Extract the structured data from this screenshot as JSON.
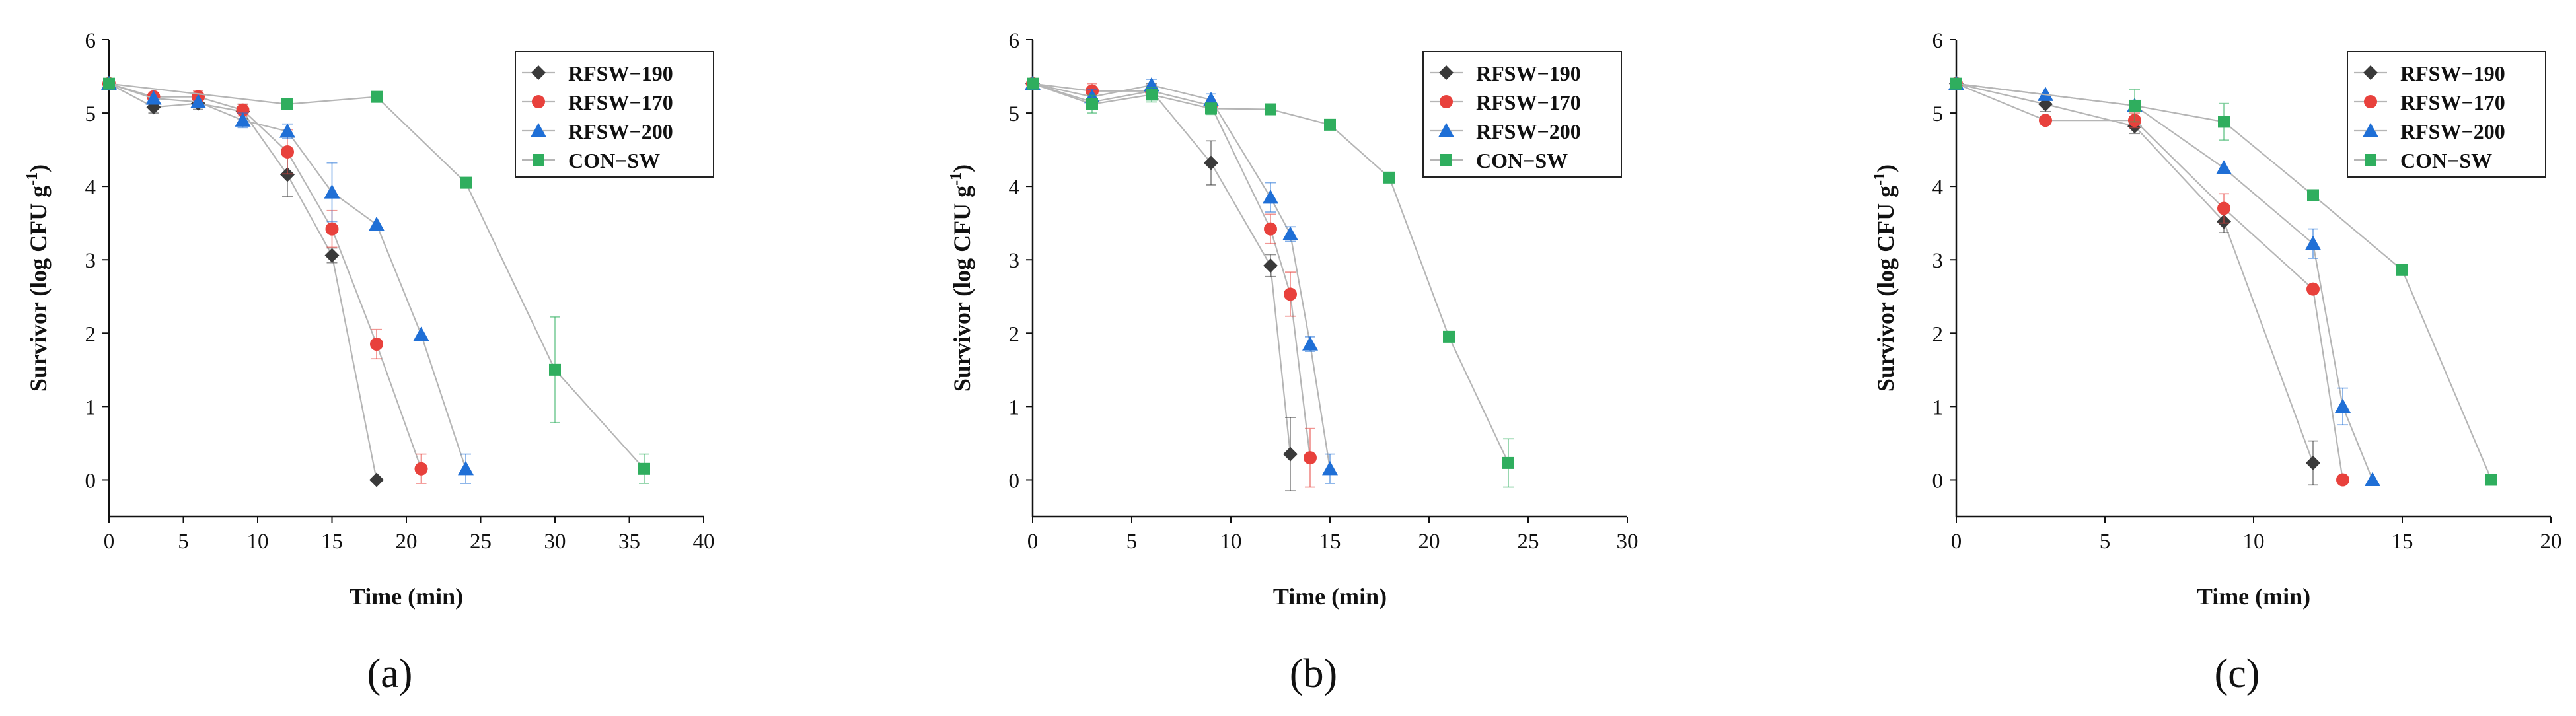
{
  "series_styles": [
    {
      "name": "RFSW-190",
      "color": "#3a3a3a",
      "marker": "diamond"
    },
    {
      "name": "RFSW-170",
      "color": "#e8413c",
      "marker": "circle"
    },
    {
      "name": "RFSW-200",
      "color": "#1f6fd6",
      "marker": "triangle"
    },
    {
      "name": "CON-SW",
      "color": "#2fae5e",
      "marker": "square"
    }
  ],
  "line_color": "#b5b5b5",
  "chart_data": [
    {
      "type": "line",
      "panel_label": "(a)",
      "xlabel": "Time (min)",
      "ylabel": "Survivor (log CFU g",
      "ylabel_sup": "-1",
      "ylabel_end": ")",
      "xlim": [
        0,
        40
      ],
      "ylim": [
        -0.5,
        6
      ],
      "xticks": [
        0,
        5,
        10,
        15,
        20,
        25,
        30,
        35,
        40
      ],
      "yticks": [
        0,
        1,
        2,
        3,
        4,
        5,
        6
      ],
      "legend": [
        "RFSW−190",
        "RFSW−170",
        "RFSW−200",
        "CON−SW"
      ],
      "series": [
        {
          "name": "RFSW-190",
          "x": [
            0,
            3,
            6,
            9,
            12,
            15,
            18
          ],
          "y": [
            5.4,
            5.08,
            5.13,
            5.02,
            4.16,
            3.06,
            0.0
          ],
          "err": [
            0.05,
            0.08,
            0.08,
            0.1,
            0.3,
            0.1,
            0.05
          ]
        },
        {
          "name": "RFSW-170",
          "x": [
            0,
            3,
            6,
            9,
            12,
            15,
            18,
            21
          ],
          "y": [
            5.4,
            5.22,
            5.22,
            5.04,
            4.47,
            3.42,
            1.85,
            0.15
          ],
          "err": [
            0.05,
            0.05,
            0.08,
            0.08,
            0.3,
            0.25,
            0.2,
            0.2
          ]
        },
        {
          "name": "RFSW-200",
          "x": [
            0,
            3,
            6,
            9,
            12,
            15,
            18,
            21,
            24
          ],
          "y": [
            5.4,
            5.2,
            5.15,
            4.9,
            4.75,
            3.92,
            3.48,
            1.98,
            0.15
          ],
          "err": [
            0.05,
            0.05,
            0.05,
            0.1,
            0.1,
            0.4,
            0.05,
            0.05,
            0.2
          ]
        },
        {
          "name": "CON-SW",
          "x": [
            0,
            12,
            18,
            24,
            30,
            36
          ],
          "y": [
            5.4,
            5.12,
            5.22,
            4.05,
            1.5,
            0.15
          ],
          "err": [
            0.05,
            0.05,
            0.05,
            0.05,
            0.72,
            0.2
          ]
        }
      ]
    },
    {
      "type": "line",
      "panel_label": "(b)",
      "xlabel": "Time (min)",
      "ylabel": "Survivor (log CFU g",
      "ylabel_sup": "-1",
      "ylabel_end": ")",
      "xlim": [
        0,
        30
      ],
      "ylim": [
        -0.5,
        6
      ],
      "xticks": [
        0,
        5,
        10,
        15,
        20,
        25,
        30
      ],
      "yticks": [
        0,
        1,
        2,
        3,
        4,
        5,
        6
      ],
      "legend": [
        "RFSW−190",
        "RFSW−170",
        "RFSW−200",
        "CON−SW"
      ],
      "series": [
        {
          "name": "RFSW-190",
          "x": [
            0,
            3,
            6,
            9,
            12,
            13
          ],
          "y": [
            5.4,
            5.15,
            5.3,
            4.32,
            2.92,
            0.35
          ],
          "err": [
            0.05,
            0.1,
            0.1,
            0.3,
            0.15,
            0.5
          ]
        },
        {
          "name": "RFSW-170",
          "x": [
            0,
            3,
            6,
            9,
            12,
            13,
            14
          ],
          "y": [
            5.4,
            5.3,
            5.3,
            5.1,
            3.42,
            2.53,
            0.3
          ],
          "err": [
            0.05,
            0.1,
            0.08,
            0.08,
            0.2,
            0.3,
            0.4
          ]
        },
        {
          "name": "RFSW-200",
          "x": [
            0,
            3,
            6,
            9,
            12,
            13,
            14,
            15
          ],
          "y": [
            5.4,
            5.22,
            5.38,
            5.18,
            3.85,
            3.35,
            1.85,
            0.15
          ],
          "err": [
            0.05,
            0.1,
            0.08,
            0.08,
            0.2,
            0.1,
            0.1,
            0.2
          ]
        },
        {
          "name": "CON-SW",
          "x": [
            0,
            3,
            6,
            9,
            12,
            15,
            18,
            21,
            24
          ],
          "y": [
            5.4,
            5.12,
            5.25,
            5.06,
            5.05,
            4.84,
            4.12,
            1.95,
            0.23
          ],
          "err": [
            0.05,
            0.12,
            0.1,
            0.08,
            0.05,
            0.05,
            0.05,
            0.05,
            0.33
          ]
        }
      ]
    },
    {
      "type": "line",
      "panel_label": "(c)",
      "xlabel": "Time (min)",
      "ylabel": "Survivor (log CFU g",
      "ylabel_sup": "-1",
      "ylabel_end": ")",
      "xlim": [
        0,
        20
      ],
      "ylim": [
        -0.5,
        6
      ],
      "xticks": [
        0,
        5,
        10,
        15,
        20
      ],
      "yticks": [
        0,
        1,
        2,
        3,
        4,
        5,
        6
      ],
      "legend": [
        "RFSW−190",
        "RFSW−170",
        "RFSW−200",
        "CON−SW"
      ],
      "series": [
        {
          "name": "RFSW-190",
          "x": [
            0,
            3,
            6,
            9,
            12
          ],
          "y": [
            5.4,
            5.12,
            4.82,
            3.52,
            0.23
          ],
          "err": [
            0.05,
            0.1,
            0.1,
            0.15,
            0.3
          ]
        },
        {
          "name": "RFSW-170",
          "x": [
            0,
            3,
            6,
            9,
            12,
            13
          ],
          "y": [
            5.4,
            4.9,
            4.9,
            3.7,
            2.6,
            0.0
          ],
          "err": [
            0.05,
            0.05,
            0.1,
            0.2,
            0.05,
            0.05
          ]
        },
        {
          "name": "RFSW-200",
          "x": [
            0,
            3,
            6,
            9,
            12,
            13,
            14
          ],
          "y": [
            5.4,
            5.25,
            5.1,
            4.25,
            3.22,
            1.0,
            0.0
          ],
          "err": [
            0.05,
            0.05,
            0.05,
            0.05,
            0.2,
            0.25,
            0.05
          ]
        },
        {
          "name": "CON-SW",
          "x": [
            0,
            6,
            9,
            12,
            15,
            18
          ],
          "y": [
            5.4,
            5.1,
            4.88,
            3.88,
            2.86,
            0.0
          ],
          "err": [
            0.05,
            0.22,
            0.25,
            0.05,
            0.05,
            0.05
          ]
        }
      ]
    }
  ]
}
